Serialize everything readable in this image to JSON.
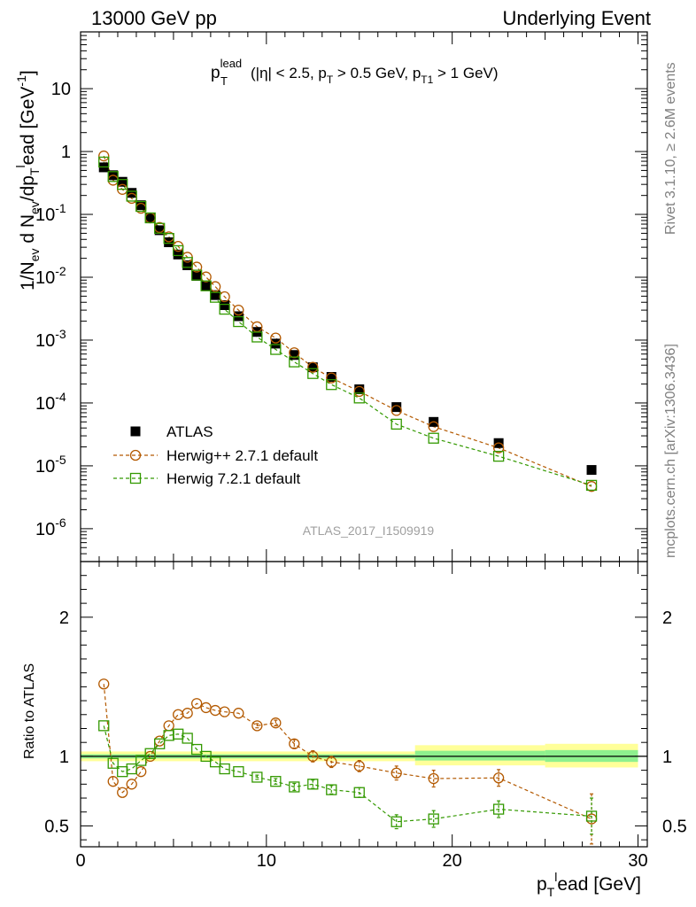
{
  "header": {
    "left": "13000 GeV pp",
    "right": "Underlying Event"
  },
  "side_labels": {
    "rivet": "Rivet 3.1.10, ≥ 2.6M events",
    "mcplots": "mcplots.cern.ch [arXiv:1306.3436]"
  },
  "chart_data": [
    {
      "type": "scatter",
      "title_main": "p",
      "title_sup": "lead",
      "title_sub": "T",
      "title_rest": "(|η| < 2.5, p",
      "title_rest_sub": "T",
      "title_rest2": " > 0.5 GeV, p",
      "title_rest2_sub": "T1",
      "title_rest3": " > 1 GeV)",
      "watermark": "ATLAS_2017_I1509919",
      "ylabel": "1/N",
      "ylabel_sub1": "ev",
      "ylabel_mid": " d N",
      "ylabel_sub2": "ev",
      "ylabel_mid2": "/dp",
      "ylabel_sub3": "T",
      "ylabel_sup3": "l",
      "ylabel_end": "ead [GeV",
      "ylabel_sup_end": "-1",
      "ylabel_close": "]",
      "yscale": "log",
      "xlim": [
        0,
        30.5
      ],
      "ylim": [
        3e-07,
        80
      ],
      "y_ticks": [
        {
          "label": "10",
          "sup": "-6"
        },
        {
          "label": "10",
          "sup": "-5"
        },
        {
          "label": "10",
          "sup": "-4"
        },
        {
          "label": "10",
          "sup": "-3"
        },
        {
          "label": "10",
          "sup": "-2"
        },
        {
          "label": "10",
          "sup": "-1"
        },
        {
          "label": "1",
          "sup": ""
        },
        {
          "label": "10",
          "sup": ""
        }
      ],
      "legend_position": "lower-left",
      "series": [
        {
          "name": "ATLAS",
          "color": "#000000",
          "marker": "filled-square",
          "x": [
            1.25,
            1.75,
            2.25,
            2.75,
            3.25,
            3.75,
            4.25,
            4.75,
            5.25,
            5.75,
            6.25,
            6.75,
            7.25,
            7.75,
            8.5,
            9.5,
            10.5,
            11.5,
            12.5,
            13.5,
            15,
            17,
            19,
            22.5,
            27.5
          ],
          "y": [
            0.56,
            0.42,
            0.33,
            0.22,
            0.14,
            0.088,
            0.056,
            0.036,
            0.023,
            0.0155,
            0.0105,
            0.0073,
            0.0052,
            0.0036,
            0.0024,
            0.00135,
            0.00088,
            0.00058,
            0.00037,
            0.00026,
            0.000165,
            8.6e-05,
            5e-05,
            2.3e-05,
            8.6e-06
          ]
        },
        {
          "name": "Herwig++ 2.7.1 default",
          "color": "#b35900",
          "marker": "open-circle",
          "x": [
            1.25,
            1.75,
            2.25,
            2.75,
            3.25,
            3.75,
            4.25,
            4.75,
            5.25,
            5.75,
            6.25,
            6.75,
            7.25,
            7.75,
            8.5,
            9.5,
            10.5,
            11.5,
            12.5,
            13.5,
            15,
            17,
            19,
            22.5,
            27.5
          ],
          "y": [
            0.85,
            0.35,
            0.25,
            0.18,
            0.125,
            0.088,
            0.062,
            0.044,
            0.031,
            0.0208,
            0.0145,
            0.0101,
            0.0071,
            0.0049,
            0.003,
            0.00163,
            0.00108,
            0.00063,
            0.00037,
            0.00025,
            0.000153,
            7.6e-05,
            4.2e-05,
            1.93e-05,
            4.7e-06
          ]
        },
        {
          "name": "Herwig 7.2.1 default",
          "color": "#339900",
          "marker": "open-square",
          "x": [
            1.25,
            1.75,
            2.25,
            2.75,
            3.25,
            3.75,
            4.25,
            4.75,
            5.25,
            5.75,
            6.25,
            6.75,
            7.25,
            7.75,
            8.5,
            9.5,
            10.5,
            11.5,
            12.5,
            13.5,
            15,
            17,
            19,
            22.5,
            27.5
          ],
          "y": [
            0.68,
            0.4,
            0.3,
            0.195,
            0.134,
            0.088,
            0.06,
            0.0415,
            0.0265,
            0.0172,
            0.0108,
            0.0073,
            0.0048,
            0.0031,
            0.00197,
            0.00112,
            0.00071,
            0.00045,
            0.000294,
            0.000196,
            0.00012,
            4.6e-05,
            2.75e-05,
            1.42e-05,
            4.9e-06
          ]
        }
      ]
    },
    {
      "type": "scatter",
      "ylabel": "Ratio to ATLAS",
      "xlabel": "p",
      "xlabel_sub": "T",
      "xlabel_sup": "l",
      "xlabel_rest": "ead [GeV]",
      "xlim": [
        0,
        30.5
      ],
      "ylim": [
        0.35,
        2.4
      ],
      "x_ticks": [
        "0",
        "10",
        "20",
        "30"
      ],
      "y_ticks": [
        "0.5",
        "1",
        "2"
      ],
      "uncertainty_bands": [
        {
          "x": [
            0,
            18
          ],
          "inner": [
            0.985,
            1.015
          ],
          "outer": [
            0.965,
            1.035
          ]
        },
        {
          "x": [
            18,
            25
          ],
          "inner": [
            0.97,
            1.04
          ],
          "outer": [
            0.935,
            1.08
          ]
        },
        {
          "x": [
            25,
            30
          ],
          "inner": [
            0.96,
            1.045
          ],
          "outer": [
            0.92,
            1.09
          ]
        }
      ],
      "series": [
        {
          "name": "Herwig++ 2.7.1 default",
          "color": "#b35900",
          "marker": "open-circle",
          "x": [
            1.25,
            1.75,
            2.25,
            2.75,
            3.25,
            3.75,
            4.25,
            4.75,
            5.25,
            5.75,
            6.25,
            6.75,
            7.25,
            7.75,
            8.5,
            9.5,
            10.5,
            11.5,
            12.5,
            13.5,
            15,
            17,
            19,
            22.5,
            27.5
          ],
          "y": [
            1.52,
            0.82,
            0.74,
            0.8,
            0.89,
            1.0,
            1.11,
            1.22,
            1.3,
            1.31,
            1.38,
            1.35,
            1.33,
            1.32,
            1.31,
            1.22,
            1.24,
            1.09,
            1.0,
            0.96,
            0.93,
            0.88,
            0.84,
            0.845,
            0.55
          ],
          "err": [
            0.01,
            0.01,
            0.01,
            0.01,
            0.01,
            0.01,
            0.01,
            0.01,
            0.01,
            0.01,
            0.01,
            0.01,
            0.01,
            0.01,
            0.01,
            0.015,
            0.02,
            0.03,
            0.04,
            0.04,
            0.04,
            0.05,
            0.06,
            0.06,
            0.18
          ]
        },
        {
          "name": "Herwig 7.2.1 default",
          "color": "#339900",
          "marker": "open-square",
          "x": [
            1.25,
            1.75,
            2.25,
            2.75,
            3.25,
            3.75,
            4.25,
            4.75,
            5.25,
            5.75,
            6.25,
            6.75,
            7.25,
            7.75,
            8.5,
            9.5,
            10.5,
            11.5,
            12.5,
            13.5,
            15,
            17,
            19,
            22.5,
            27.5
          ],
          "y": [
            1.22,
            0.95,
            0.89,
            0.91,
            0.97,
            1.02,
            1.09,
            1.15,
            1.16,
            1.13,
            1.05,
            1.0,
            0.96,
            0.91,
            0.89,
            0.85,
            0.82,
            0.78,
            0.8,
            0.76,
            0.74,
            0.53,
            0.55,
            0.62,
            0.57
          ],
          "err": [
            0.01,
            0.01,
            0.01,
            0.01,
            0.01,
            0.01,
            0.01,
            0.01,
            0.01,
            0.01,
            0.01,
            0.01,
            0.01,
            0.01,
            0.01,
            0.015,
            0.02,
            0.025,
            0.03,
            0.03,
            0.035,
            0.05,
            0.06,
            0.06,
            0.13
          ]
        }
      ]
    }
  ]
}
